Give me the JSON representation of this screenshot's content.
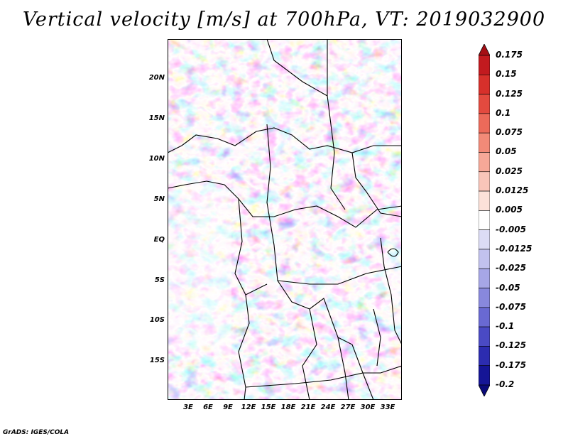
{
  "title": "Vertical velocity [m/s] at 700hPa, VT: 2019032900",
  "credit": "GrADS: IGES/COLA",
  "lat_labels": [
    "20N",
    "15N",
    "10N",
    "5N",
    "EQ",
    "5S",
    "10S",
    "15S"
  ],
  "lon_labels": [
    "3E",
    "6E",
    "9E",
    "12E",
    "15E",
    "18E",
    "21E",
    "24E",
    "27E",
    "30E",
    "33E"
  ],
  "colorbar": {
    "labels": [
      "0.175",
      "0.15",
      "0.125",
      "0.1",
      "0.075",
      "0.05",
      "0.025",
      "0.0125",
      "0.005",
      "-0.005",
      "-0.0125",
      "-0.025",
      "-0.05",
      "-0.075",
      "-0.1",
      "-0.125",
      "-0.175",
      "-0.2"
    ],
    "colors": [
      "#a50f15",
      "#c21a1f",
      "#d7302b",
      "#e34a3f",
      "#ec6a5a",
      "#f28a78",
      "#f6a898",
      "#f9c5b9",
      "#fce1d9",
      "#ffffff",
      "#dcdcf5",
      "#c2c2ee",
      "#a6a6e6",
      "#8888dd",
      "#6969d2",
      "#4a4ac4",
      "#2c2cb0",
      "#151596",
      "#0a0a7a"
    ]
  },
  "colors": {
    "positive": "#d7302b",
    "negative": "#4a4ac4",
    "neutral": "#ffffff"
  }
}
